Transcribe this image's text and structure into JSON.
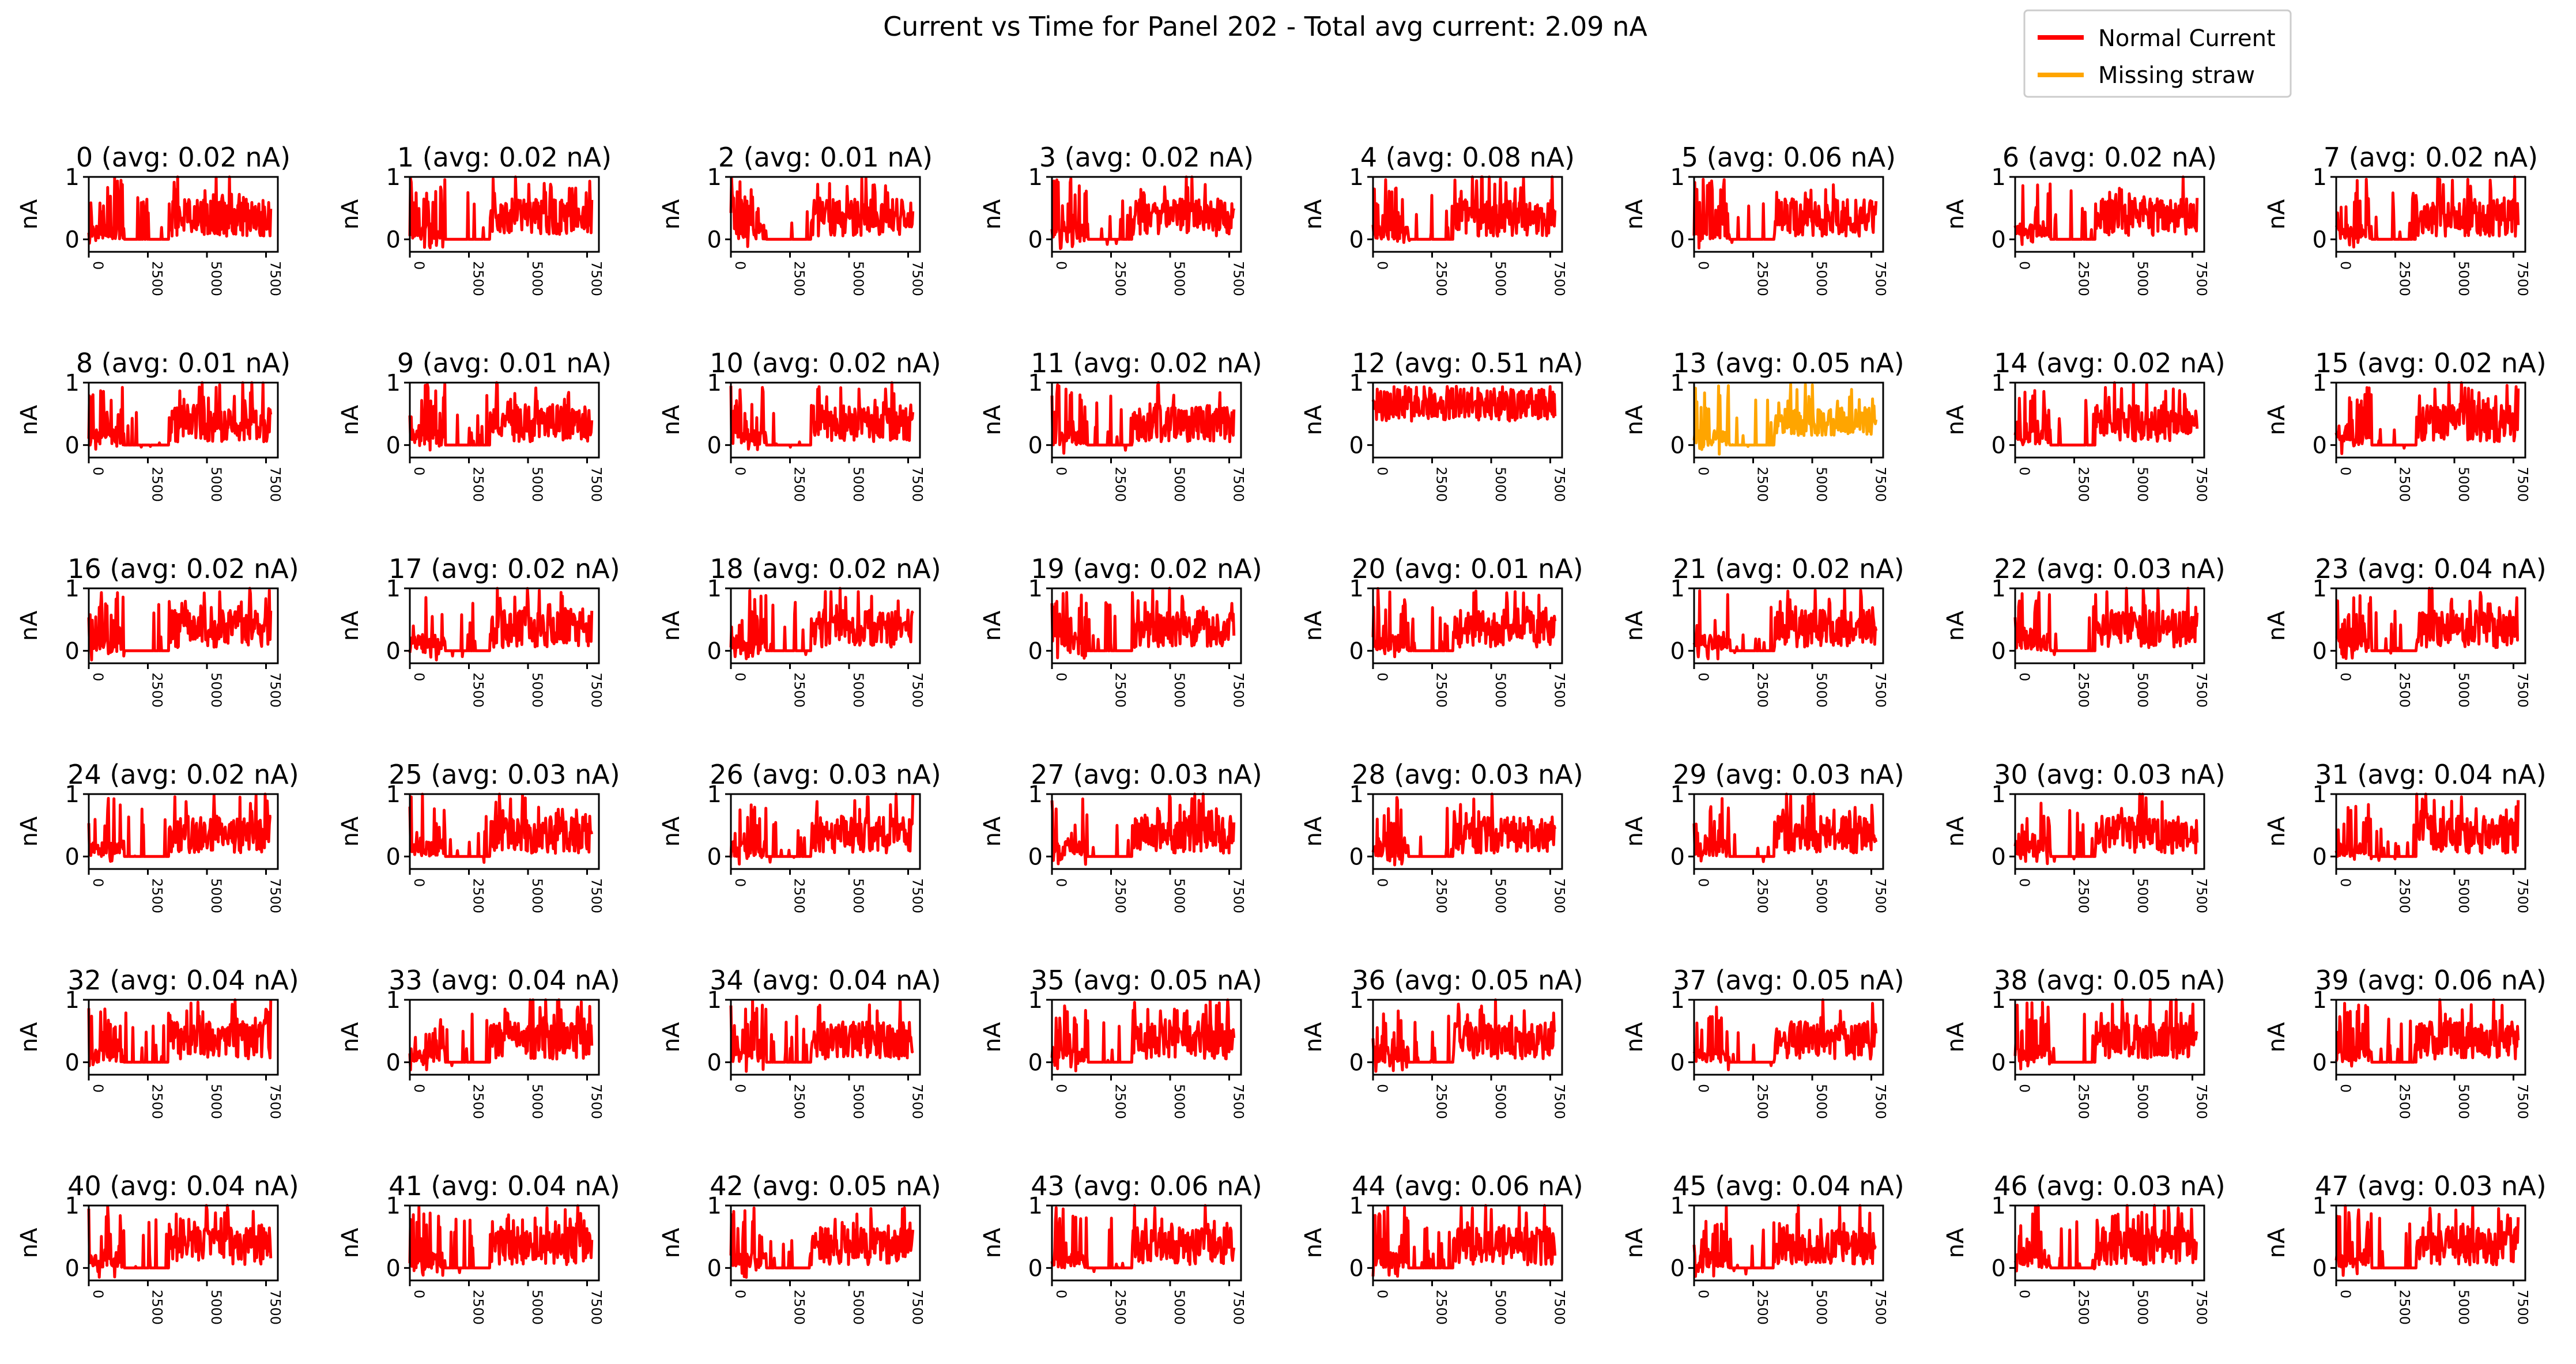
{
  "figure": {
    "title": "Current vs Time for Panel 202 - Total avg current: 2.09 nA",
    "legend": [
      {
        "label": "Normal Current",
        "color": "#ff0000"
      },
      {
        "label": "Missing straw",
        "color": "#ffa500"
      }
    ]
  },
  "chart_data": {
    "type": "line",
    "layout": "small multiples, 6 rows x 8 columns",
    "ylabel": "nA",
    "xlim": [
      0,
      8000
    ],
    "ylim": [
      -0.2,
      1
    ],
    "xticks": [
      "0",
      "2500",
      "5000",
      "7500"
    ],
    "yticks": [
      "0",
      "1"
    ],
    "colors": {
      "Normal Current": "#ff0000",
      "Missing straw": "#ffa500"
    },
    "legend_position": "top-right",
    "panels": [
      {
        "title": "0 (avg: 0.02 nA)",
        "avg": 0.02,
        "status": "Normal Current"
      },
      {
        "title": "1 (avg: 0.02 nA)",
        "avg": 0.02,
        "status": "Normal Current"
      },
      {
        "title": "2 (avg: 0.01 nA)",
        "avg": 0.01,
        "status": "Normal Current"
      },
      {
        "title": "3 (avg: 0.02 nA)",
        "avg": 0.02,
        "status": "Normal Current"
      },
      {
        "title": "4 (avg: 0.08 nA)",
        "avg": 0.08,
        "status": "Normal Current"
      },
      {
        "title": "5 (avg: 0.06 nA)",
        "avg": 0.06,
        "status": "Normal Current"
      },
      {
        "title": "6 (avg: 0.02 nA)",
        "avg": 0.02,
        "status": "Normal Current"
      },
      {
        "title": "7 (avg: 0.02 nA)",
        "avg": 0.02,
        "status": "Normal Current"
      },
      {
        "title": "8 (avg: 0.01 nA)",
        "avg": 0.01,
        "status": "Normal Current"
      },
      {
        "title": "9 (avg: 0.01 nA)",
        "avg": 0.01,
        "status": "Normal Current"
      },
      {
        "title": "10 (avg: 0.02 nA)",
        "avg": 0.02,
        "status": "Normal Current"
      },
      {
        "title": "11 (avg: 0.02 nA)",
        "avg": 0.02,
        "status": "Normal Current"
      },
      {
        "title": "12 (avg: 0.51 nA)",
        "avg": 0.51,
        "status": "Normal Current"
      },
      {
        "title": "13 (avg: 0.05 nA)",
        "avg": 0.05,
        "status": "Missing straw"
      },
      {
        "title": "14 (avg: 0.02 nA)",
        "avg": 0.02,
        "status": "Normal Current"
      },
      {
        "title": "15 (avg: 0.02 nA)",
        "avg": 0.02,
        "status": "Normal Current"
      },
      {
        "title": "16 (avg: 0.02 nA)",
        "avg": 0.02,
        "status": "Normal Current"
      },
      {
        "title": "17 (avg: 0.02 nA)",
        "avg": 0.02,
        "status": "Normal Current"
      },
      {
        "title": "18 (avg: 0.02 nA)",
        "avg": 0.02,
        "status": "Normal Current"
      },
      {
        "title": "19 (avg: 0.02 nA)",
        "avg": 0.02,
        "status": "Normal Current"
      },
      {
        "title": "20 (avg: 0.01 nA)",
        "avg": 0.01,
        "status": "Normal Current"
      },
      {
        "title": "21 (avg: 0.02 nA)",
        "avg": 0.02,
        "status": "Normal Current"
      },
      {
        "title": "22 (avg: 0.03 nA)",
        "avg": 0.03,
        "status": "Normal Current"
      },
      {
        "title": "23 (avg: 0.04 nA)",
        "avg": 0.04,
        "status": "Normal Current"
      },
      {
        "title": "24 (avg: 0.02 nA)",
        "avg": 0.02,
        "status": "Normal Current"
      },
      {
        "title": "25 (avg: 0.03 nA)",
        "avg": 0.03,
        "status": "Normal Current"
      },
      {
        "title": "26 (avg: 0.03 nA)",
        "avg": 0.03,
        "status": "Normal Current"
      },
      {
        "title": "27 (avg: 0.03 nA)",
        "avg": 0.03,
        "status": "Normal Current"
      },
      {
        "title": "28 (avg: 0.03 nA)",
        "avg": 0.03,
        "status": "Normal Current"
      },
      {
        "title": "29 (avg: 0.03 nA)",
        "avg": 0.03,
        "status": "Normal Current"
      },
      {
        "title": "30 (avg: 0.03 nA)",
        "avg": 0.03,
        "status": "Normal Current"
      },
      {
        "title": "31 (avg: 0.04 nA)",
        "avg": 0.04,
        "status": "Normal Current"
      },
      {
        "title": "32 (avg: 0.04 nA)",
        "avg": 0.04,
        "status": "Normal Current"
      },
      {
        "title": "33 (avg: 0.04 nA)",
        "avg": 0.04,
        "status": "Normal Current"
      },
      {
        "title": "34 (avg: 0.04 nA)",
        "avg": 0.04,
        "status": "Normal Current"
      },
      {
        "title": "35 (avg: 0.05 nA)",
        "avg": 0.05,
        "status": "Normal Current"
      },
      {
        "title": "36 (avg: 0.05 nA)",
        "avg": 0.05,
        "status": "Normal Current"
      },
      {
        "title": "37 (avg: 0.05 nA)",
        "avg": 0.05,
        "status": "Normal Current"
      },
      {
        "title": "38 (avg: 0.05 nA)",
        "avg": 0.05,
        "status": "Normal Current"
      },
      {
        "title": "39 (avg: 0.06 nA)",
        "avg": 0.06,
        "status": "Normal Current"
      },
      {
        "title": "40 (avg: 0.04 nA)",
        "avg": 0.04,
        "status": "Normal Current"
      },
      {
        "title": "41 (avg: 0.04 nA)",
        "avg": 0.04,
        "status": "Normal Current"
      },
      {
        "title": "42 (avg: 0.05 nA)",
        "avg": 0.05,
        "status": "Normal Current"
      },
      {
        "title": "43 (avg: 0.06 nA)",
        "avg": 0.06,
        "status": "Normal Current"
      },
      {
        "title": "44 (avg: 0.06 nA)",
        "avg": 0.06,
        "status": "Normal Current"
      },
      {
        "title": "45 (avg: 0.04 nA)",
        "avg": 0.04,
        "status": "Normal Current"
      },
      {
        "title": "46 (avg: 0.03 nA)",
        "avg": 0.03,
        "status": "Normal Current"
      },
      {
        "title": "47 (avg: 0.03 nA)",
        "avg": 0.03,
        "status": "Normal Current"
      }
    ]
  }
}
